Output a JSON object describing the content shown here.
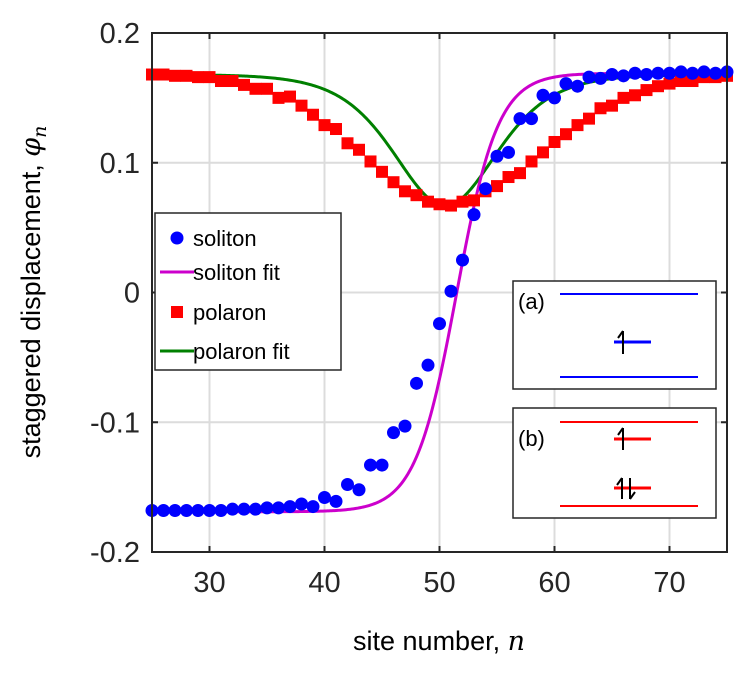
{
  "chart_data": {
    "type": "scatter",
    "xlabel": "site number, ",
    "xlabel_var": "n",
    "ylabel": "staggered displacement, ",
    "ylabel_var": "φ",
    "ylabel_sub": "n",
    "xlim": [
      25,
      75
    ],
    "ylim": [
      -0.2,
      0.2
    ],
    "xticks": [
      30,
      40,
      50,
      60,
      70
    ],
    "yticks": [
      -0.2,
      -0.1,
      0,
      0.1,
      0.2
    ],
    "ytick_labels": [
      "-0.2",
      "-0.1",
      "0",
      "0.1",
      "0.2"
    ],
    "grid": true,
    "legend_position": "middle-left",
    "series": [
      {
        "name": "soliton",
        "style": "marker-circle",
        "color": "#0000ff",
        "x": [
          25,
          26,
          27,
          28,
          29,
          30,
          31,
          32,
          33,
          34,
          35,
          36,
          37,
          38,
          39,
          40,
          41,
          42,
          43,
          44,
          45,
          46,
          47,
          48,
          49,
          50,
          51,
          52,
          53,
          54,
          55,
          56,
          57,
          58,
          59,
          60,
          61,
          62,
          63,
          64,
          65,
          66,
          67,
          68,
          69,
          70,
          71,
          72,
          73,
          74,
          75
        ],
        "values": [
          -0.168,
          -0.168,
          -0.168,
          -0.168,
          -0.168,
          -0.168,
          -0.168,
          -0.167,
          -0.167,
          -0.167,
          -0.166,
          -0.166,
          -0.165,
          -0.163,
          -0.165,
          -0.158,
          -0.161,
          -0.148,
          -0.152,
          -0.133,
          -0.133,
          -0.108,
          -0.103,
          -0.07,
          -0.056,
          -0.024,
          0.001,
          0.025,
          0.06,
          0.08,
          0.105,
          0.108,
          0.134,
          0.134,
          0.152,
          0.15,
          0.161,
          0.159,
          0.166,
          0.165,
          0.168,
          0.167,
          0.169,
          0.168,
          0.169,
          0.169,
          0.17,
          0.169,
          0.17,
          0.169,
          0.17
        ]
      },
      {
        "name": "soliton fit",
        "style": "line",
        "color": "#cc00cc",
        "fit": "tanh",
        "amplitude": 0.169,
        "center": 51.5,
        "width": 3.6
      },
      {
        "name": "polaron",
        "style": "marker-square",
        "color": "#ff0000",
        "x": [
          25,
          26,
          27,
          28,
          29,
          30,
          31,
          32,
          33,
          34,
          35,
          36,
          37,
          38,
          39,
          40,
          41,
          42,
          43,
          44,
          45,
          46,
          47,
          48,
          49,
          50,
          51,
          52,
          53,
          54,
          55,
          56,
          57,
          58,
          59,
          60,
          61,
          62,
          63,
          64,
          65,
          66,
          67,
          68,
          69,
          70,
          71,
          72,
          73,
          74,
          75
        ],
        "values": [
          0.168,
          0.168,
          0.167,
          0.167,
          0.166,
          0.166,
          0.163,
          0.163,
          0.16,
          0.157,
          0.157,
          0.15,
          0.151,
          0.144,
          0.137,
          0.129,
          0.126,
          0.115,
          0.11,
          0.101,
          0.093,
          0.085,
          0.078,
          0.075,
          0.07,
          0.068,
          0.067,
          0.07,
          0.071,
          0.078,
          0.082,
          0.089,
          0.092,
          0.101,
          0.108,
          0.116,
          0.122,
          0.129,
          0.134,
          0.142,
          0.144,
          0.15,
          0.152,
          0.156,
          0.159,
          0.161,
          0.163,
          0.163,
          0.166,
          0.166,
          0.167
        ]
      },
      {
        "name": "polaron fit",
        "style": "line",
        "color": "#008000",
        "fit": "sech2",
        "baseline": 0.168,
        "depth": 0.101,
        "center": 50.5,
        "width": 6.0
      }
    ],
    "insets": [
      {
        "label": "(a)",
        "levels": [
          {
            "kind": "band-line",
            "color": "#0000ff"
          },
          {
            "kind": "midgap",
            "color": "#0000ff",
            "electrons": "up"
          },
          {
            "kind": "band-line",
            "color": "#0000ff"
          }
        ]
      },
      {
        "label": "(b)",
        "levels": [
          {
            "kind": "band-line",
            "color": "#ff0000"
          },
          {
            "kind": "midgap",
            "color": "#ff0000",
            "electrons": "up"
          },
          {
            "kind": "midgap",
            "color": "#ff0000",
            "electrons": "up-down"
          },
          {
            "kind": "band-line",
            "color": "#ff0000"
          }
        ]
      }
    ]
  }
}
